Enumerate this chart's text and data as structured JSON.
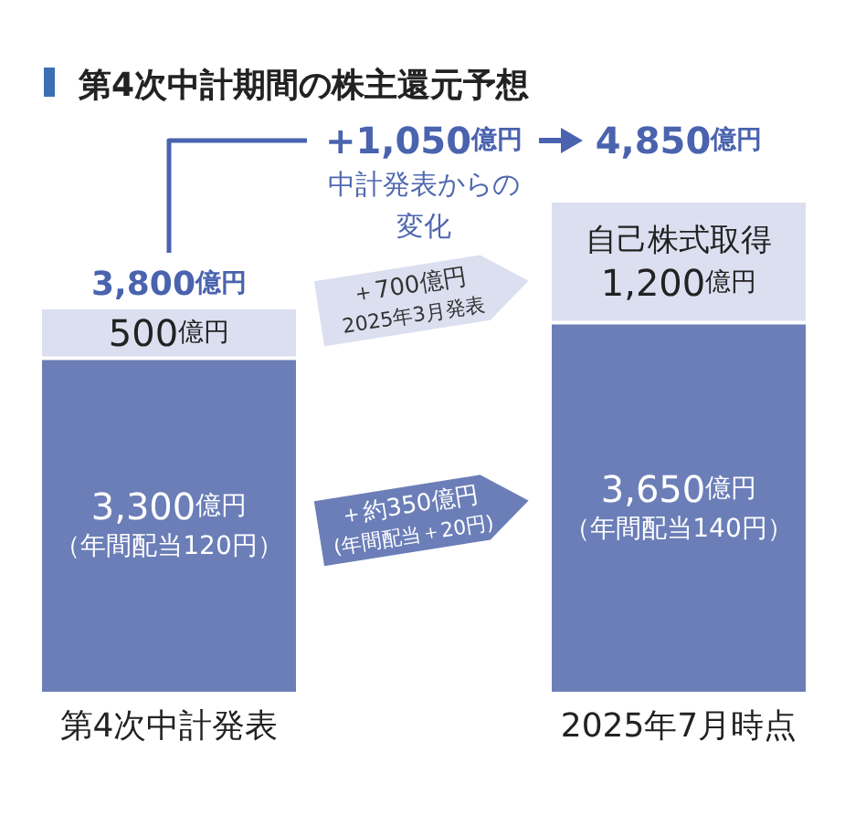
{
  "chart_data": {
    "type": "bar",
    "title": "第4次中計期間の株主還元予想",
    "categories": [
      "第4次中計発表",
      "2025年7月時点"
    ],
    "stacked": true,
    "series": [
      {
        "color": "#6b7eb8",
        "values": [
          3300,
          3650
        ],
        "value_labels": [
          "3,300億円（年間配当120円）",
          "3,650億円（年間配当140円）"
        ]
      },
      {
        "color": "#dcdff0",
        "values": [
          500,
          1200
        ],
        "value_labels": [
          "500億円",
          "自己株式取得1,200億円"
        ]
      }
    ],
    "totals": [
      "3,800億円",
      "4,850億円"
    ],
    "annotations": [
      "+1,050億円",
      "中計発表からの変化",
      "＋700億円2025年3月発表",
      "＋約350億円(年間配当＋20円)"
    ]
  }
}
